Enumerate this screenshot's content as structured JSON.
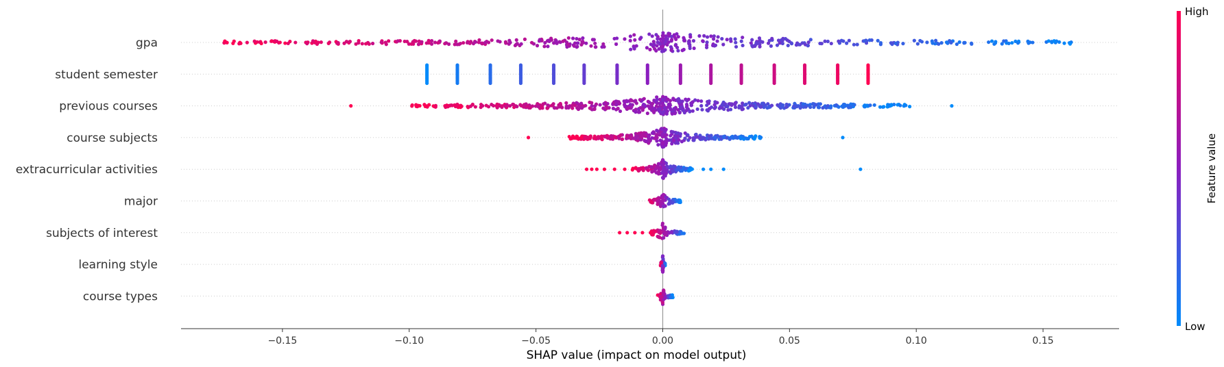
{
  "chart_data": {
    "type": "scatter",
    "subtype": "shap-beeswarm",
    "xlabel": "SHAP value (impact on model output)",
    "xlim": [
      -0.19,
      0.18
    ],
    "xticks": [
      -0.15,
      -0.1,
      -0.05,
      0.0,
      0.05,
      0.1,
      0.15
    ],
    "xtick_labels": [
      "−0.15",
      "−0.10",
      "−0.05",
      "0.00",
      "0.05",
      "0.10",
      "0.15"
    ],
    "zero_line": 0.0,
    "grid": false,
    "colors": {
      "low": "#008bfb",
      "mid": "#8b1ebf",
      "high": "#ff0052"
    },
    "colorbar": {
      "title": "Feature value",
      "high_label": "High",
      "low_label": "Low",
      "position": "right"
    },
    "features": [
      {
        "name": "gpa",
        "kind": "continuous",
        "range": [
          -0.173,
          0.163
        ],
        "high_side": "left",
        "density": 460
      },
      {
        "name": "student semester",
        "kind": "discrete",
        "high_side": "right",
        "points": [
          -0.093,
          -0.081,
          -0.068,
          -0.056,
          -0.043,
          -0.031,
          -0.018,
          -0.006,
          0.007,
          0.019,
          0.031,
          0.044,
          0.056,
          0.069,
          0.081
        ]
      },
      {
        "name": "previous courses",
        "kind": "continuous",
        "range": [
          -0.099,
          0.099
        ],
        "high_side": "left",
        "density": 560,
        "outliers": [
          -0.123,
          0.114
        ]
      },
      {
        "name": "course subjects",
        "kind": "continuous",
        "range": [
          -0.037,
          0.039
        ],
        "high_side": "left",
        "density": 320,
        "outliers": [
          -0.053,
          0.071
        ]
      },
      {
        "name": "extracurricular activities",
        "kind": "continuous",
        "range": [
          -0.012,
          0.012
        ],
        "high_side": "left",
        "density": 120,
        "outliers": [
          -0.03,
          -0.028,
          -0.026,
          -0.023,
          -0.019,
          -0.015,
          0.016,
          0.019,
          0.024,
          0.078
        ]
      },
      {
        "name": "major",
        "kind": "continuous",
        "range": [
          -0.006,
          0.007
        ],
        "high_side": "left",
        "density": 60
      },
      {
        "name": "subjects of interest",
        "kind": "continuous",
        "range": [
          -0.005,
          0.009
        ],
        "high_side": "left",
        "density": 60,
        "outliers": [
          -0.017,
          -0.014,
          -0.011,
          -0.008
        ]
      },
      {
        "name": "learning style",
        "kind": "continuous",
        "range": [
          -0.001,
          0.001
        ],
        "high_side": "left",
        "density": 50
      },
      {
        "name": "course types",
        "kind": "continuous",
        "range": [
          -0.002,
          0.004
        ],
        "high_side": "left",
        "density": 50
      }
    ]
  }
}
